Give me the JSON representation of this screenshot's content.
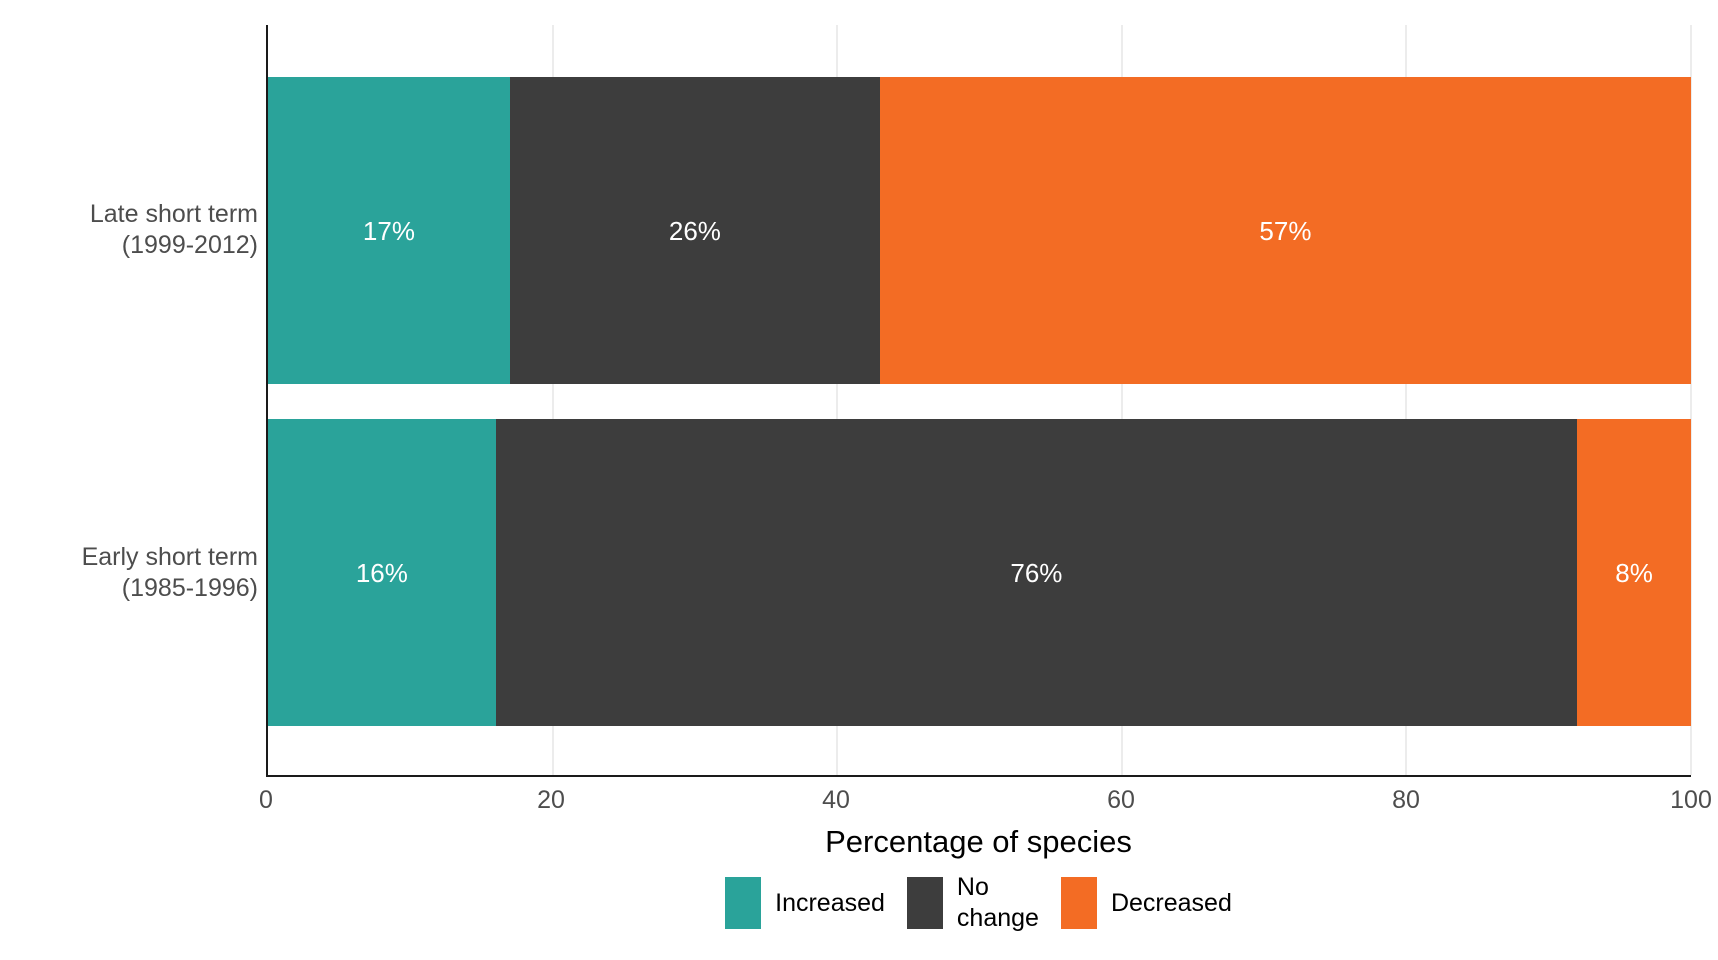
{
  "chart_data": {
    "type": "bar",
    "orientation": "horizontal",
    "stacked": true,
    "title": "",
    "xlabel": "Percentage of species",
    "ylabel": "",
    "xlim": [
      0,
      100
    ],
    "xticks": [
      0,
      20,
      40,
      60,
      80,
      100
    ],
    "grid": "vertical-light",
    "legend_position": "bottom",
    "value_suffix": "%",
    "categories": [
      {
        "id": "late-short-term",
        "label_lines": [
          "Late short term",
          "(1999-2012)"
        ]
      },
      {
        "id": "early-short-term",
        "label_lines": [
          "Early short term",
          "(1985-1996)"
        ]
      }
    ],
    "series": [
      {
        "name": "Increased",
        "label_lines": [
          "Increased"
        ],
        "color": "#2aa39a",
        "values": [
          17,
          16
        ]
      },
      {
        "name": "No change",
        "label_lines": [
          "No",
          "change"
        ],
        "color": "#3d3d3d",
        "values": [
          26,
          76
        ]
      },
      {
        "name": "Decreased",
        "label_lines": [
          "Decreased"
        ],
        "color": "#f36c24",
        "values": [
          57,
          8
        ]
      }
    ]
  },
  "colors": {
    "background": "#ffffff",
    "axis_line": "#1a1a1a",
    "axis_text": "#4d4d4d",
    "gridline": "#ececec",
    "bar_value_text": "#ffffff",
    "title_text": "#000000",
    "legend_text": "#000000"
  }
}
